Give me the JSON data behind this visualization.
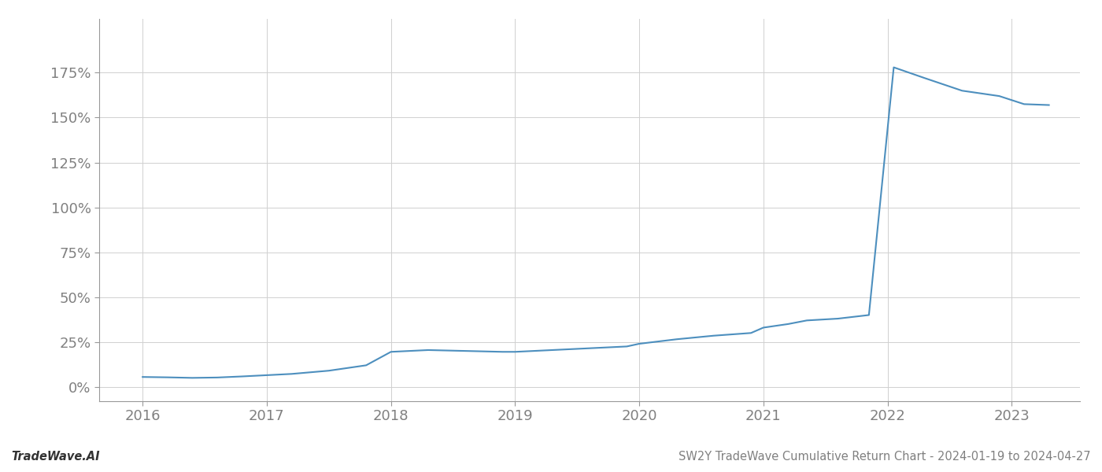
{
  "x": [
    2016.0,
    2016.2,
    2016.4,
    2016.6,
    2016.8,
    2017.0,
    2017.2,
    2017.5,
    2017.8,
    2018.0,
    2018.3,
    2018.6,
    2018.9,
    2019.0,
    2019.3,
    2019.6,
    2019.9,
    2020.0,
    2020.3,
    2020.6,
    2020.9,
    2021.0,
    2021.1,
    2021.2,
    2021.35,
    2021.6,
    2021.85,
    2022.05,
    2022.3,
    2022.6,
    2022.9,
    2023.1,
    2023.3
  ],
  "y": [
    5.5,
    5.3,
    5.0,
    5.2,
    5.8,
    6.5,
    7.2,
    9.0,
    12.0,
    19.5,
    20.5,
    20.0,
    19.5,
    19.5,
    20.5,
    21.5,
    22.5,
    24.0,
    26.5,
    28.5,
    30.0,
    33.0,
    34.0,
    35.0,
    37.0,
    38.0,
    40.0,
    178.0,
    172.0,
    165.0,
    162.0,
    157.5,
    157.0
  ],
  "line_color": "#4d8fbe",
  "line_width": 1.5,
  "xlim": [
    2015.65,
    2023.55
  ],
  "ylim": [
    -8,
    205
  ],
  "yticks": [
    0,
    25,
    50,
    75,
    100,
    125,
    150,
    175
  ],
  "xticks": [
    2016,
    2017,
    2018,
    2019,
    2020,
    2021,
    2022,
    2023
  ],
  "grid_color": "#d0d0d0",
  "background_color": "#ffffff",
  "footer_left": "TradeWave.AI",
  "footer_right": "SW2Y TradeWave Cumulative Return Chart - 2024-01-19 to 2024-04-27",
  "tick_label_color": "#808080",
  "footer_fontsize": 10.5,
  "tick_fontsize": 13
}
